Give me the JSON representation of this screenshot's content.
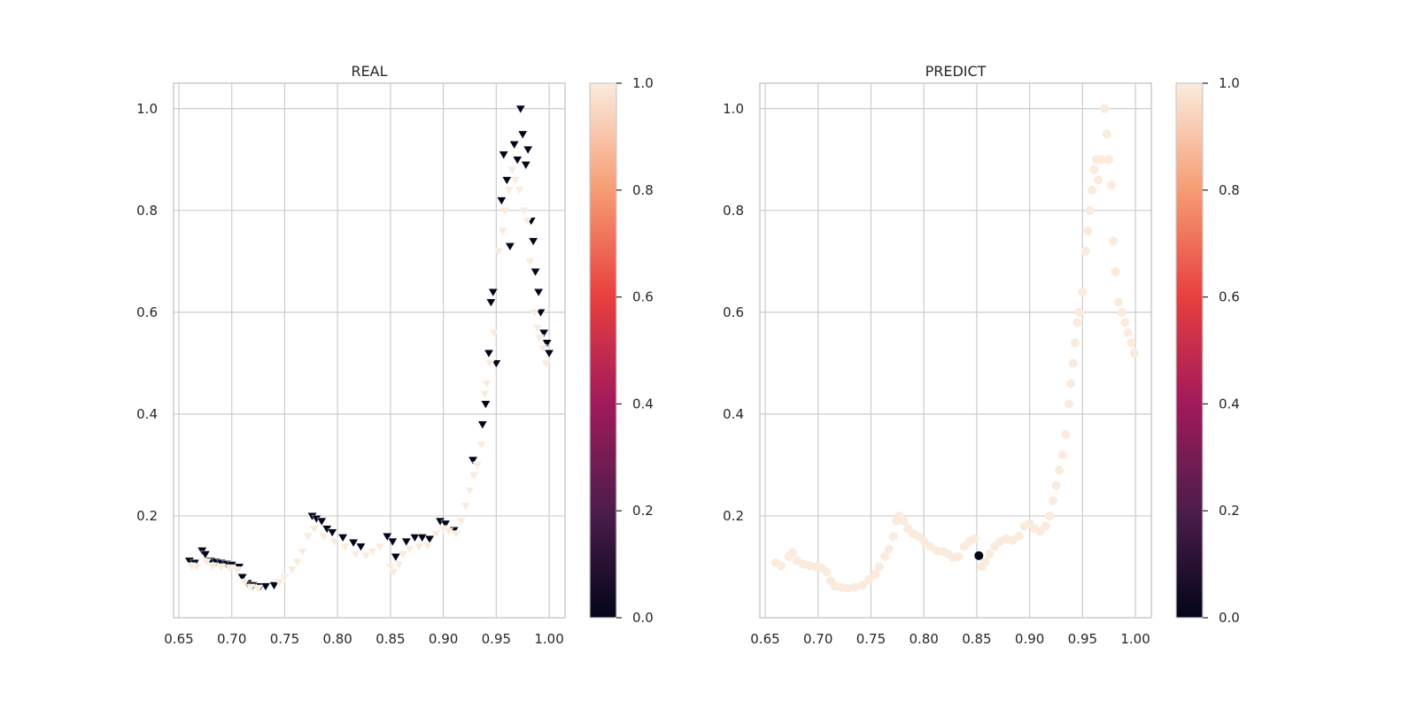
{
  "chart_data": [
    {
      "type": "scatter",
      "title": "REAL",
      "xlabel": "",
      "ylabel": "",
      "xlim": [
        0.645,
        1.015
      ],
      "ylim": [
        0.0,
        1.05
      ],
      "xticks": [
        "0.65",
        "0.70",
        "0.75",
        "0.80",
        "0.85",
        "0.90",
        "0.95",
        "1.00"
      ],
      "yticks": [
        "0.2",
        "0.4",
        "0.6",
        "0.8",
        "1.0"
      ],
      "grid": true,
      "colormap": [
        "#03051a",
        "#4c1d4b",
        "#a11a5b",
        "#e83f3f",
        "#f69c73",
        "#faebdd"
      ],
      "colorbar": {
        "range": [
          0.0,
          1.0
        ],
        "ticks": [
          "0.0",
          "0.2",
          "0.4",
          "0.6",
          "0.8",
          "1.0"
        ]
      },
      "marker": "triangle-down",
      "series": [
        {
          "class": 0,
          "color": "#03051a",
          "points": [
            [
              0.66,
              0.112
            ],
            [
              0.665,
              0.108
            ],
            [
              0.672,
              0.132
            ],
            [
              0.675,
              0.125
            ],
            [
              0.68,
              0.112
            ],
            [
              0.685,
              0.11
            ],
            [
              0.69,
              0.108
            ],
            [
              0.695,
              0.106
            ],
            [
              0.7,
              0.104
            ],
            [
              0.707,
              0.1
            ],
            [
              0.71,
              0.08
            ],
            [
              0.715,
              0.068
            ],
            [
              0.72,
              0.064
            ],
            [
              0.727,
              0.062
            ],
            [
              0.732,
              0.062
            ],
            [
              0.74,
              0.064
            ],
            [
              0.776,
              0.2
            ],
            [
              0.78,
              0.195
            ],
            [
              0.785,
              0.19
            ],
            [
              0.79,
              0.175
            ],
            [
              0.795,
              0.168
            ],
            [
              0.805,
              0.158
            ],
            [
              0.815,
              0.148
            ],
            [
              0.822,
              0.14
            ],
            [
              0.847,
              0.16
            ],
            [
              0.852,
              0.15
            ],
            [
              0.855,
              0.12
            ],
            [
              0.865,
              0.15
            ],
            [
              0.873,
              0.158
            ],
            [
              0.88,
              0.158
            ],
            [
              0.887,
              0.155
            ],
            [
              0.897,
              0.19
            ],
            [
              0.902,
              0.185
            ],
            [
              0.91,
              0.172
            ],
            [
              0.928,
              0.31
            ],
            [
              0.937,
              0.38
            ],
            [
              0.94,
              0.42
            ],
            [
              0.943,
              0.52
            ],
            [
              0.945,
              0.62
            ],
            [
              0.947,
              0.64
            ],
            [
              0.95,
              0.5
            ],
            [
              0.955,
              0.82
            ],
            [
              0.957,
              0.91
            ],
            [
              0.96,
              0.86
            ],
            [
              0.963,
              0.73
            ],
            [
              0.967,
              0.93
            ],
            [
              0.97,
              0.9
            ],
            [
              0.973,
              1.0
            ],
            [
              0.975,
              0.95
            ],
            [
              0.978,
              0.89
            ],
            [
              0.98,
              0.92
            ],
            [
              0.983,
              0.78
            ],
            [
              0.985,
              0.74
            ],
            [
              0.987,
              0.68
            ],
            [
              0.99,
              0.64
            ],
            [
              0.992,
              0.6
            ],
            [
              0.995,
              0.56
            ],
            [
              0.998,
              0.54
            ],
            [
              1.0,
              0.52
            ]
          ]
        },
        {
          "class": 1,
          "color": "#faebdd",
          "points": [
            [
              0.662,
              0.102
            ],
            [
              0.667,
              0.1
            ],
            [
              0.676,
              0.11
            ],
            [
              0.682,
              0.102
            ],
            [
              0.69,
              0.1
            ],
            [
              0.698,
              0.098
            ],
            [
              0.705,
              0.094
            ],
            [
              0.712,
              0.07
            ],
            [
              0.718,
              0.06
            ],
            [
              0.725,
              0.058
            ],
            [
              0.745,
              0.07
            ],
            [
              0.75,
              0.08
            ],
            [
              0.757,
              0.095
            ],
            [
              0.762,
              0.11
            ],
            [
              0.767,
              0.13
            ],
            [
              0.772,
              0.16
            ],
            [
              0.778,
              0.175
            ],
            [
              0.787,
              0.16
            ],
            [
              0.797,
              0.15
            ],
            [
              0.807,
              0.14
            ],
            [
              0.817,
              0.125
            ],
            [
              0.827,
              0.122
            ],
            [
              0.833,
              0.13
            ],
            [
              0.84,
              0.14
            ],
            [
              0.85,
              0.1
            ],
            [
              0.853,
              0.09
            ],
            [
              0.858,
              0.105
            ],
            [
              0.862,
              0.125
            ],
            [
              0.868,
              0.135
            ],
            [
              0.877,
              0.14
            ],
            [
              0.885,
              0.142
            ],
            [
              0.893,
              0.165
            ],
            [
              0.9,
              0.175
            ],
            [
              0.905,
              0.17
            ],
            [
              0.912,
              0.165
            ],
            [
              0.917,
              0.19
            ],
            [
              0.921,
              0.22
            ],
            [
              0.925,
              0.25
            ],
            [
              0.929,
              0.28
            ],
            [
              0.932,
              0.3
            ],
            [
              0.936,
              0.34
            ],
            [
              0.939,
              0.44
            ],
            [
              0.941,
              0.46
            ],
            [
              0.944,
              0.5
            ],
            [
              0.948,
              0.56
            ],
            [
              0.952,
              0.72
            ],
            [
              0.956,
              0.76
            ],
            [
              0.958,
              0.8
            ],
            [
              0.962,
              0.84
            ],
            [
              0.965,
              0.88
            ],
            [
              0.968,
              0.86
            ],
            [
              0.972,
              0.84
            ],
            [
              0.976,
              0.8
            ],
            [
              0.979,
              0.78
            ],
            [
              0.982,
              0.7
            ],
            [
              0.986,
              0.6
            ],
            [
              0.989,
              0.57
            ],
            [
              0.991,
              0.55
            ],
            [
              0.994,
              0.53
            ],
            [
              0.997,
              0.5
            ]
          ]
        }
      ]
    },
    {
      "type": "scatter",
      "title": "PREDICT",
      "xlabel": "",
      "ylabel": "",
      "xlim": [
        0.645,
        1.015
      ],
      "ylim": [
        0.0,
        1.05
      ],
      "xticks": [
        "0.65",
        "0.70",
        "0.75",
        "0.80",
        "0.85",
        "0.90",
        "0.95",
        "1.00"
      ],
      "yticks": [
        "0.2",
        "0.4",
        "0.6",
        "0.8",
        "1.0"
      ],
      "grid": true,
      "colormap": [
        "#03051a",
        "#4c1d4b",
        "#a11a5b",
        "#e83f3f",
        "#f69c73",
        "#faebdd"
      ],
      "colorbar": {
        "range": [
          0.0,
          1.0
        ],
        "ticks": [
          "0.0",
          "0.2",
          "0.4",
          "0.6",
          "0.8",
          "1.0"
        ]
      },
      "marker": "circle",
      "series": [
        {
          "class": 0,
          "color": "#03051a",
          "points": [
            [
              0.852,
              0.122
            ]
          ]
        },
        {
          "class": 1,
          "color": "#faebdd",
          "points": [
            [
              0.66,
              0.108
            ],
            [
              0.665,
              0.102
            ],
            [
              0.672,
              0.12
            ],
            [
              0.676,
              0.128
            ],
            [
              0.68,
              0.112
            ],
            [
              0.686,
              0.105
            ],
            [
              0.692,
              0.102
            ],
            [
              0.698,
              0.1
            ],
            [
              0.703,
              0.098
            ],
            [
              0.708,
              0.09
            ],
            [
              0.712,
              0.072
            ],
            [
              0.716,
              0.062
            ],
            [
              0.722,
              0.06
            ],
            [
              0.728,
              0.058
            ],
            [
              0.735,
              0.06
            ],
            [
              0.742,
              0.064
            ],
            [
              0.748,
              0.075
            ],
            [
              0.754,
              0.085
            ],
            [
              0.758,
              0.1
            ],
            [
              0.763,
              0.12
            ],
            [
              0.767,
              0.135
            ],
            [
              0.771,
              0.16
            ],
            [
              0.774,
              0.19
            ],
            [
              0.777,
              0.2
            ],
            [
              0.781,
              0.19
            ],
            [
              0.785,
              0.175
            ],
            [
              0.79,
              0.165
            ],
            [
              0.795,
              0.16
            ],
            [
              0.8,
              0.15
            ],
            [
              0.806,
              0.14
            ],
            [
              0.812,
              0.132
            ],
            [
              0.818,
              0.13
            ],
            [
              0.823,
              0.125
            ],
            [
              0.828,
              0.118
            ],
            [
              0.833,
              0.12
            ],
            [
              0.838,
              0.14
            ],
            [
              0.843,
              0.15
            ],
            [
              0.848,
              0.155
            ],
            [
              0.855,
              0.1
            ],
            [
              0.858,
              0.11
            ],
            [
              0.862,
              0.125
            ],
            [
              0.867,
              0.14
            ],
            [
              0.872,
              0.15
            ],
            [
              0.878,
              0.155
            ],
            [
              0.884,
              0.152
            ],
            [
              0.89,
              0.16
            ],
            [
              0.895,
              0.18
            ],
            [
              0.9,
              0.185
            ],
            [
              0.905,
              0.175
            ],
            [
              0.91,
              0.17
            ],
            [
              0.915,
              0.18
            ],
            [
              0.919,
              0.2
            ],
            [
              0.922,
              0.23
            ],
            [
              0.925,
              0.26
            ],
            [
              0.928,
              0.29
            ],
            [
              0.931,
              0.32
            ],
            [
              0.934,
              0.36
            ],
            [
              0.937,
              0.42
            ],
            [
              0.939,
              0.46
            ],
            [
              0.941,
              0.5
            ],
            [
              0.943,
              0.54
            ],
            [
              0.945,
              0.58
            ],
            [
              0.947,
              0.6
            ],
            [
              0.95,
              0.64
            ],
            [
              0.953,
              0.72
            ],
            [
              0.955,
              0.76
            ],
            [
              0.957,
              0.8
            ],
            [
              0.959,
              0.84
            ],
            [
              0.961,
              0.88
            ],
            [
              0.963,
              0.9
            ],
            [
              0.965,
              0.86
            ],
            [
              0.968,
              0.9
            ],
            [
              0.971,
              1.0
            ],
            [
              0.973,
              0.95
            ],
            [
              0.975,
              0.9
            ],
            [
              0.977,
              0.85
            ],
            [
              0.979,
              0.74
            ],
            [
              0.981,
              0.68
            ],
            [
              0.984,
              0.62
            ],
            [
              0.987,
              0.6
            ],
            [
              0.99,
              0.58
            ],
            [
              0.993,
              0.56
            ],
            [
              0.996,
              0.54
            ],
            [
              0.999,
              0.52
            ]
          ]
        }
      ]
    }
  ]
}
